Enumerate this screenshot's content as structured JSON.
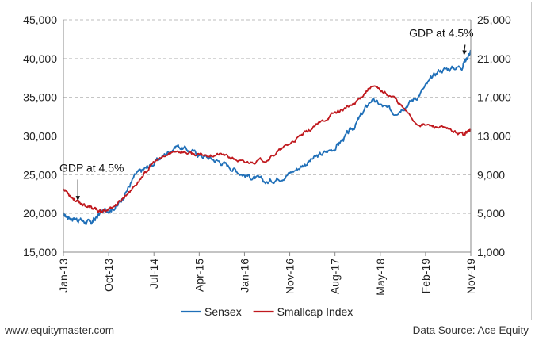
{
  "chart_data": {
    "type": "line",
    "title": "",
    "x_labels": [
      "Jan-13",
      "Oct-13",
      "Jul-14",
      "Apr-15",
      "Jan-16",
      "Nov-16",
      "Aug-17",
      "May-18",
      "Feb-19",
      "Nov-19"
    ],
    "y_left": {
      "ticks": [
        "15,000",
        "20,000",
        "25,000",
        "30,000",
        "35,000",
        "40,000",
        "45,000"
      ],
      "min": 15000,
      "max": 45000
    },
    "y_right": {
      "ticks": [
        "1,000",
        "5,000",
        "9,000",
        "13,000",
        "17,000",
        "21,000",
        "25,000"
      ],
      "min": 1000,
      "max": 25000
    },
    "grid": true,
    "series": [
      {
        "name": "Sensex",
        "axis": "left",
        "color": "#1f6fb8",
        "t": [
          0,
          0.3,
          0.6,
          0.85,
          1.2,
          1.6,
          2.0,
          2.5,
          3.0,
          3.5,
          4.0,
          4.5,
          5.0,
          5.5,
          6.0,
          6.4,
          6.8,
          7.3,
          7.8,
          8.3,
          8.8,
          9.0
        ],
        "values": [
          19700,
          19300,
          18700,
          20200,
          21000,
          25000,
          26500,
          28800,
          27600,
          26600,
          25000,
          24000,
          25200,
          27000,
          28500,
          31000,
          34700,
          33000,
          35000,
          38500,
          39000,
          41000
        ]
      },
      {
        "name": "Smallcap Index",
        "axis": "right",
        "color": "#c0191e",
        "t": [
          0,
          0.3,
          0.6,
          0.85,
          1.2,
          1.6,
          2.0,
          2.5,
          3.0,
          3.5,
          4.0,
          4.5,
          5.0,
          5.5,
          6.0,
          6.4,
          6.8,
          7.3,
          7.8,
          8.3,
          8.8,
          9.0
        ],
        "values": [
          7600,
          6200,
          5600,
          5100,
          6000,
          8000,
          10300,
          11500,
          11000,
          11100,
          10200,
          10600,
          12200,
          13800,
          15400,
          16200,
          18200,
          17000,
          14300,
          13900,
          13200,
          13600
        ]
      }
    ],
    "annotations": [
      {
        "text": "GDP at 4.5%",
        "x": 0.35,
        "y": 25400,
        "axis": "left",
        "target_x": 0.32,
        "target_y": 21600
      },
      {
        "text": "GDP at 4.5%",
        "x": 8.35,
        "y": 42800,
        "axis": "left",
        "target_x": 8.85,
        "target_y": 40400
      }
    ],
    "legend_position": "bottom-center"
  },
  "footer": {
    "website": "www.equitymaster.com",
    "source": "Data Source: Ace Equity"
  }
}
